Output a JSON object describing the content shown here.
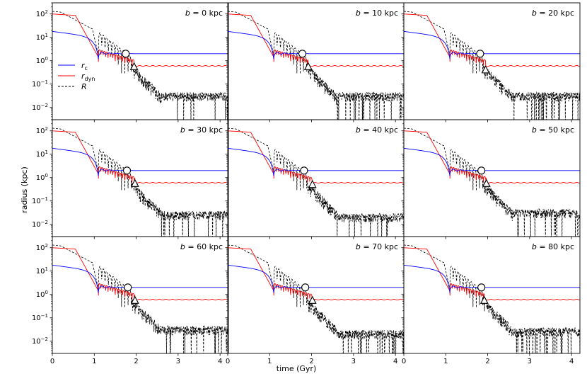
{
  "chart_data": {
    "type": "line",
    "yscale": "log",
    "xlabel": "time (Gyr)",
    "ylabel": "radius (kpc)",
    "xlim": [
      0,
      4.2
    ],
    "ylim": [
      0.003,
      300
    ],
    "xticks": [
      0,
      1,
      2,
      3,
      4
    ],
    "yticks": [
      {
        "value": 100,
        "base": "10",
        "exp": "2"
      },
      {
        "value": 10,
        "base": "10",
        "exp": "1"
      },
      {
        "value": 1,
        "base": "10",
        "exp": "0"
      },
      {
        "value": 0.1,
        "base": "10",
        "exp": "−1"
      },
      {
        "value": 0.01,
        "base": "10",
        "exp": "−2"
      }
    ],
    "legend": {
      "location": "left, top row first panel",
      "entries": [
        {
          "key": "rc",
          "symbol": "r",
          "sub": "c",
          "color": "#0000ff",
          "dash": "solid"
        },
        {
          "key": "rdyn",
          "symbol": "r",
          "sub": "dyn",
          "color": "#ff0000",
          "dash": "solid"
        },
        {
          "key": "R",
          "symbol": "R",
          "sub": "",
          "color": "#000000",
          "dash": "dashed"
        }
      ]
    },
    "panels": [
      {
        "b": "0",
        "label_var": "b",
        "label_rest": " = 0 kpc",
        "circle": [
          1.75,
          2.0
        ],
        "triangle": [
          1.95,
          0.55
        ],
        "rc_final": 2.0,
        "rdyn_final": 0.6,
        "R_tail": 0.03
      },
      {
        "b": "10",
        "label_var": "b",
        "label_rest": " = 10 kpc",
        "circle": [
          1.78,
          2.0
        ],
        "triangle": [
          1.92,
          0.55
        ],
        "rc_final": 2.0,
        "rdyn_final": 0.6,
        "R_tail": 0.03
      },
      {
        "b": "20",
        "label_var": "b",
        "label_rest": " = 20 kpc",
        "circle": [
          1.82,
          2.0
        ],
        "triangle": [
          1.95,
          0.4
        ],
        "rc_final": 2.0,
        "rdyn_final": 0.6,
        "R_tail": 0.03
      },
      {
        "b": "30",
        "label_var": "b",
        "label_rest": " = 30 kpc",
        "circle": [
          1.78,
          2.0
        ],
        "triangle": [
          1.97,
          0.55
        ],
        "rc_final": 2.0,
        "rdyn_final": 0.6,
        "R_tail": 0.025
      },
      {
        "b": "40",
        "label_var": "b",
        "label_rest": " = 40 kpc",
        "circle": [
          1.82,
          2.0
        ],
        "triangle": [
          2.02,
          0.5
        ],
        "rc_final": 2.0,
        "rdyn_final": 0.6,
        "R_tail": 0.02
      },
      {
        "b": "50",
        "label_var": "b",
        "label_rest": " = 50 kpc",
        "circle": [
          1.85,
          2.0
        ],
        "triangle": [
          1.97,
          0.55
        ],
        "rc_final": 2.0,
        "rdyn_final": 0.6,
        "R_tail": 0.03
      },
      {
        "b": "60",
        "label_var": "b",
        "label_rest": " = 60 kpc",
        "circle": [
          1.8,
          2.0
        ],
        "triangle": [
          1.97,
          0.55
        ],
        "rc_final": 2.0,
        "rdyn_final": 0.6,
        "R_tail": 0.03
      },
      {
        "b": "70",
        "label_var": "b",
        "label_rest": " = 70 kpc",
        "circle": [
          1.85,
          2.0
        ],
        "triangle": [
          2.02,
          0.55
        ],
        "rc_final": 2.0,
        "rdyn_final": 0.6,
        "R_tail": 0.02
      },
      {
        "b": "80",
        "label_var": "b",
        "label_rest": " = 80 kpc",
        "circle": [
          1.85,
          2.0
        ],
        "triangle": [
          1.92,
          0.55
        ],
        "rc_final": 2.0,
        "rdyn_final": 0.6,
        "R_tail": 0.025
      }
    ]
  }
}
